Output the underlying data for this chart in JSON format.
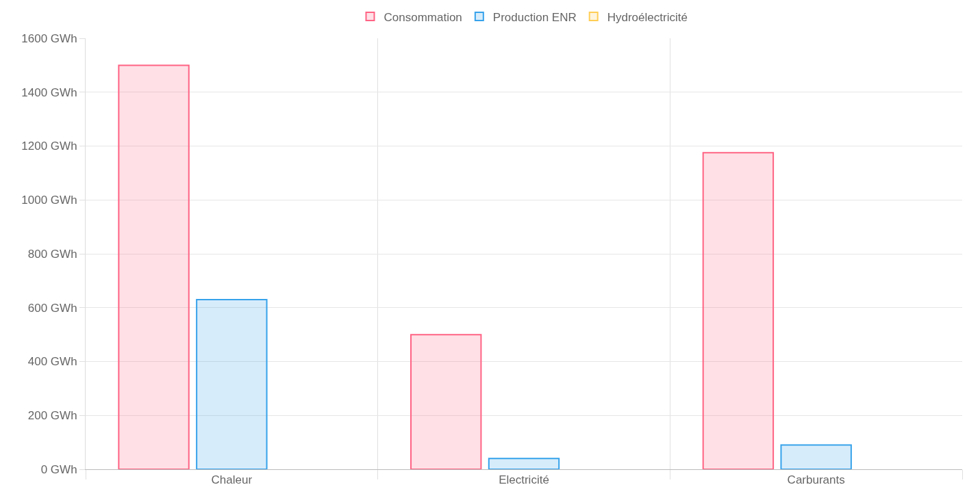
{
  "chart_data": {
    "type": "bar",
    "categories": [
      "Chaleur",
      "Electricité",
      "Carburants"
    ],
    "series": [
      {
        "name": "Consommation",
        "color": "#ff6384",
        "values": [
          1500,
          500,
          1175
        ]
      },
      {
        "name": "Production ENR",
        "color": "#36a2eb",
        "values": [
          630,
          40,
          90
        ]
      },
      {
        "name": "Hydroélectricité",
        "color": "#ffce56",
        "values": [
          null,
          null,
          null
        ]
      }
    ],
    "ylim": [
      0,
      1600
    ],
    "yticks": [
      {
        "value": 0,
        "label": "0 GWh"
      },
      {
        "value": 200,
        "label": "200 GWh"
      },
      {
        "value": 400,
        "label": "400 GWh"
      },
      {
        "value": 600,
        "label": "600 GWh"
      },
      {
        "value": 800,
        "label": "800 GWh"
      },
      {
        "value": 1000,
        "label": "1000 GWh"
      },
      {
        "value": 1200,
        "label": "1200 GWh"
      },
      {
        "value": 1400,
        "label": "1400 GWh"
      },
      {
        "value": 1600,
        "label": "1600 GWh"
      }
    ],
    "grid": true,
    "legend": "top"
  }
}
